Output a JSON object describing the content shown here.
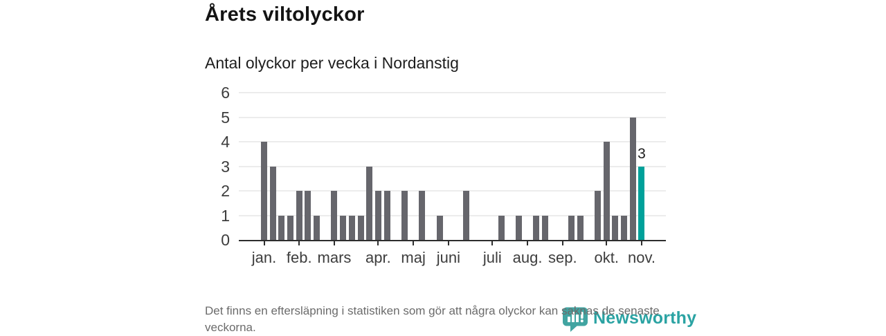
{
  "header": {
    "title": "Årets viltolyckor",
    "subtitle": "Antal olyckor per vecka i Nordanstig"
  },
  "chart_data": {
    "type": "bar",
    "title": "Årets viltolyckor",
    "subtitle": "Antal olyckor per vecka i Nordanstig",
    "xlabel": "",
    "ylabel": "",
    "x_unit": "week",
    "weeks": [
      1,
      2,
      3,
      4,
      5,
      6,
      7,
      8,
      9,
      10,
      11,
      12,
      13,
      14,
      15,
      16,
      17,
      18,
      19,
      20,
      21,
      22,
      23,
      24,
      25,
      26,
      27,
      28,
      29,
      30,
      31,
      32,
      33,
      34,
      35,
      36,
      37,
      38,
      39,
      40,
      41,
      42,
      43,
      44
    ],
    "values": [
      4,
      3,
      1,
      1,
      2,
      2,
      1,
      0,
      2,
      1,
      1,
      1,
      3,
      2,
      2,
      0,
      2,
      0,
      2,
      0,
      1,
      0,
      0,
      2,
      0,
      0,
      0,
      1,
      0,
      1,
      0,
      1,
      1,
      0,
      0,
      1,
      1,
      0,
      2,
      4,
      1,
      1,
      5,
      3
    ],
    "ylim": [
      0,
      6
    ],
    "yticks": [
      0,
      1,
      2,
      3,
      4,
      5,
      6
    ],
    "grid": true,
    "legend": false,
    "month_ticks": [
      {
        "week": 1,
        "label": "jan."
      },
      {
        "week": 5,
        "label": "feb."
      },
      {
        "week": 9,
        "label": "mars"
      },
      {
        "week": 14,
        "label": "apr."
      },
      {
        "week": 18,
        "label": "maj"
      },
      {
        "week": 22,
        "label": "juni"
      },
      {
        "week": 27,
        "label": "juli"
      },
      {
        "week": 31,
        "label": "aug."
      },
      {
        "week": 35,
        "label": "sep."
      },
      {
        "week": 40,
        "label": "okt."
      },
      {
        "week": 44,
        "label": "nov."
      }
    ],
    "highlight": {
      "week": 44,
      "value": 3,
      "label": "3"
    },
    "colors": {
      "bar": "#66666c",
      "highlight": "#00a19a",
      "grid": "#ececec",
      "axis": "#2d2d2d",
      "tick_text": "#3d3d3d"
    }
  },
  "footer": {
    "note": "Det finns en eftersläpning i statistiken som gör att några olyckor kan saknas de senaste veckorna."
  },
  "branding": {
    "name": "Newsworthy",
    "icon": "newsworthy-speech-bubble-barchart-icon",
    "text_color": "#2ba3a3",
    "icon_color": "#41a4a1"
  }
}
